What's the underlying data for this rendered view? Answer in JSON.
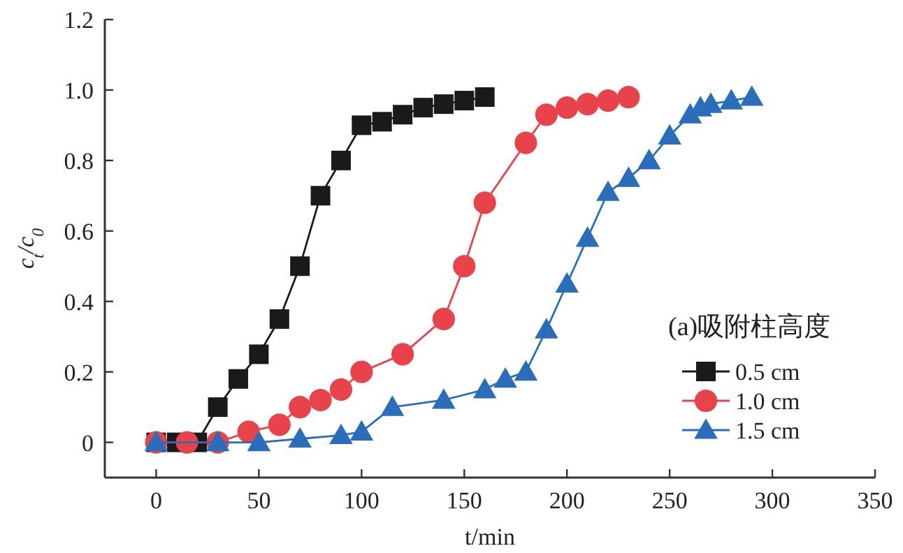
{
  "chart_data": {
    "type": "line",
    "xlabel": "t/min",
    "ylabel": "c$_{t}$/c$_{0}$",
    "legend_title": "(a)吸附柱高度",
    "legend": "bottom right",
    "grid": false,
    "xlim": [
      -25,
      350
    ],
    "xticks": [
      0,
      50,
      100,
      150,
      200,
      250,
      300,
      350
    ],
    "ylim": [
      -0.1,
      1.2
    ],
    "yticks": [
      0,
      {
        "value": 0.2,
        "label": "0.2"
      },
      {
        "value": 0.4,
        "label": "0.4"
      },
      {
        "value": 0.6,
        "label": "0.6"
      },
      {
        "value": 0.8,
        "label": "0.8"
      },
      {
        "value": 1,
        "label": "1.0"
      },
      {
        "value": 1.2,
        "label": "1.2"
      }
    ],
    "line_style": "solid",
    "series": [
      {
        "name": "0.5 cm",
        "color": "#1a1a1a",
        "marker": "square",
        "x": [
          0,
          10,
          20,
          30,
          40,
          50,
          60,
          70,
          80,
          90,
          100,
          110,
          120,
          130,
          140,
          150,
          160
        ],
        "values": [
          0,
          0,
          0,
          0.1,
          0.18,
          0.25,
          0.35,
          0.5,
          0.7,
          0.8,
          0.9,
          0.91,
          0.93,
          0.95,
          0.96,
          0.97,
          0.98
        ]
      },
      {
        "name": "1.0 cm",
        "color": "#e8434a",
        "marker": "circle",
        "x": [
          0,
          15,
          30,
          45,
          60,
          70,
          80,
          90,
          100,
          120,
          140,
          150,
          160,
          180,
          190,
          200,
          210,
          220,
          230
        ],
        "values": [
          0,
          0,
          0,
          0.03,
          0.05,
          0.1,
          0.12,
          0.15,
          0.2,
          0.25,
          0.35,
          0.5,
          0.68,
          0.85,
          0.93,
          0.95,
          0.96,
          0.97,
          0.98
        ]
      },
      {
        "name": "1.5 cm",
        "color": "#2a6ebb",
        "marker": "triangle",
        "x": [
          0,
          30,
          50,
          70,
          90,
          100,
          115,
          140,
          160,
          170,
          180,
          190,
          200,
          210,
          220,
          230,
          240,
          250,
          260,
          265,
          270,
          280,
          290
        ],
        "values": [
          0,
          0,
          0,
          0.01,
          0.02,
          0.03,
          0.1,
          0.12,
          0.15,
          0.18,
          0.2,
          0.32,
          0.45,
          0.58,
          0.71,
          0.75,
          0.8,
          0.87,
          0.93,
          0.95,
          0.96,
          0.97,
          0.98
        ]
      }
    ]
  }
}
